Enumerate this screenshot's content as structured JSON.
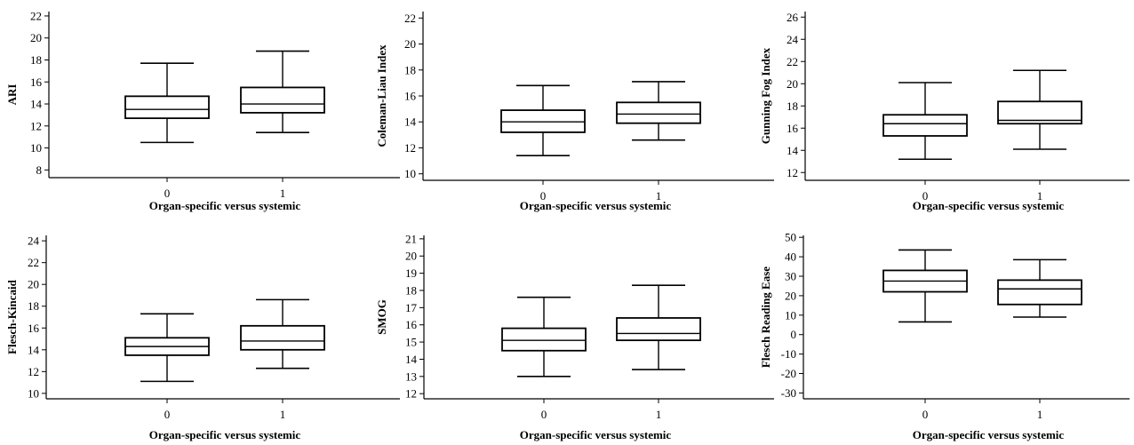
{
  "chart_data": [
    {
      "type": "box",
      "ylabel": "ARI",
      "xlabel": "Organ-specific versus systemic",
      "categories": [
        "0",
        "1"
      ],
      "ylim": [
        7.3,
        22.4
      ],
      "yticks": [
        8,
        10,
        12,
        14,
        16,
        18,
        20,
        22
      ],
      "boxes": [
        {
          "category": "0",
          "min": 10.5,
          "q1": 12.7,
          "median": 13.5,
          "q3": 14.7,
          "max": 17.7
        },
        {
          "category": "1",
          "min": 11.4,
          "q1": 13.2,
          "median": 14.0,
          "q3": 15.5,
          "max": 18.8
        }
      ]
    },
    {
      "type": "box",
      "ylabel": "Coleman-Liau Index",
      "xlabel": "Organ-specific versus systemic",
      "categories": [
        "0",
        "1"
      ],
      "ylim": [
        9.5,
        22.5
      ],
      "yticks": [
        10,
        12,
        14,
        16,
        18,
        20,
        22
      ],
      "boxes": [
        {
          "category": "0",
          "min": 11.4,
          "q1": 13.2,
          "median": 14.0,
          "q3": 14.9,
          "max": 16.8
        },
        {
          "category": "1",
          "min": 12.6,
          "q1": 13.9,
          "median": 14.6,
          "q3": 15.5,
          "max": 17.1
        }
      ]
    },
    {
      "type": "box",
      "ylabel": "Gunning Fog Index",
      "xlabel": "Organ-specific versus systemic",
      "categories": [
        "0",
        "1"
      ],
      "ylim": [
        11.3,
        26.5
      ],
      "yticks": [
        12,
        14,
        16,
        18,
        20,
        22,
        24,
        26
      ],
      "boxes": [
        {
          "category": "0",
          "min": 13.2,
          "q1": 15.3,
          "median": 16.4,
          "q3": 17.2,
          "max": 20.1
        },
        {
          "category": "1",
          "min": 14.1,
          "q1": 16.4,
          "median": 16.7,
          "q3": 18.4,
          "max": 21.2
        }
      ]
    },
    {
      "type": "box",
      "ylabel": "Flesch-Kincaid",
      "xlabel": "Organ-specific versus systemic",
      "categories": [
        "0",
        "1"
      ],
      "ylim": [
        9.5,
        24.5
      ],
      "yticks": [
        10,
        12,
        14,
        16,
        18,
        20,
        22,
        24
      ],
      "boxes": [
        {
          "category": "0",
          "min": 11.1,
          "q1": 13.5,
          "median": 14.3,
          "q3": 15.1,
          "max": 17.3
        },
        {
          "category": "1",
          "min": 12.3,
          "q1": 14.0,
          "median": 14.8,
          "q3": 16.2,
          "max": 18.6
        }
      ]
    },
    {
      "type": "box",
      "ylabel": "SMOG",
      "xlabel": "Organ-specific versus systemic",
      "categories": [
        "0",
        "1"
      ],
      "ylim": [
        11.7,
        21.2
      ],
      "yticks": [
        12,
        13,
        14,
        15,
        16,
        17,
        18,
        19,
        20,
        21
      ],
      "boxes": [
        {
          "category": "0",
          "min": 13.0,
          "q1": 14.5,
          "median": 15.1,
          "q3": 15.8,
          "max": 17.6
        },
        {
          "category": "1",
          "min": 13.4,
          "q1": 15.1,
          "median": 15.5,
          "q3": 16.4,
          "max": 18.3
        }
      ]
    },
    {
      "type": "box",
      "ylabel": "Flesch Reading Ease",
      "xlabel": "Organ-specific versus systemic",
      "categories": [
        "0",
        "1"
      ],
      "ylim": [
        -33,
        51
      ],
      "yticks": [
        -30,
        -20,
        -10,
        0,
        10,
        20,
        30,
        40,
        50
      ],
      "boxes": [
        {
          "category": "0",
          "min": 6.5,
          "q1": 22.0,
          "median": 27.5,
          "q3": 33.0,
          "max": 43.5
        },
        {
          "category": "1",
          "min": 9.0,
          "q1": 15.5,
          "median": 23.5,
          "q3": 28.0,
          "max": 38.5
        }
      ]
    }
  ]
}
